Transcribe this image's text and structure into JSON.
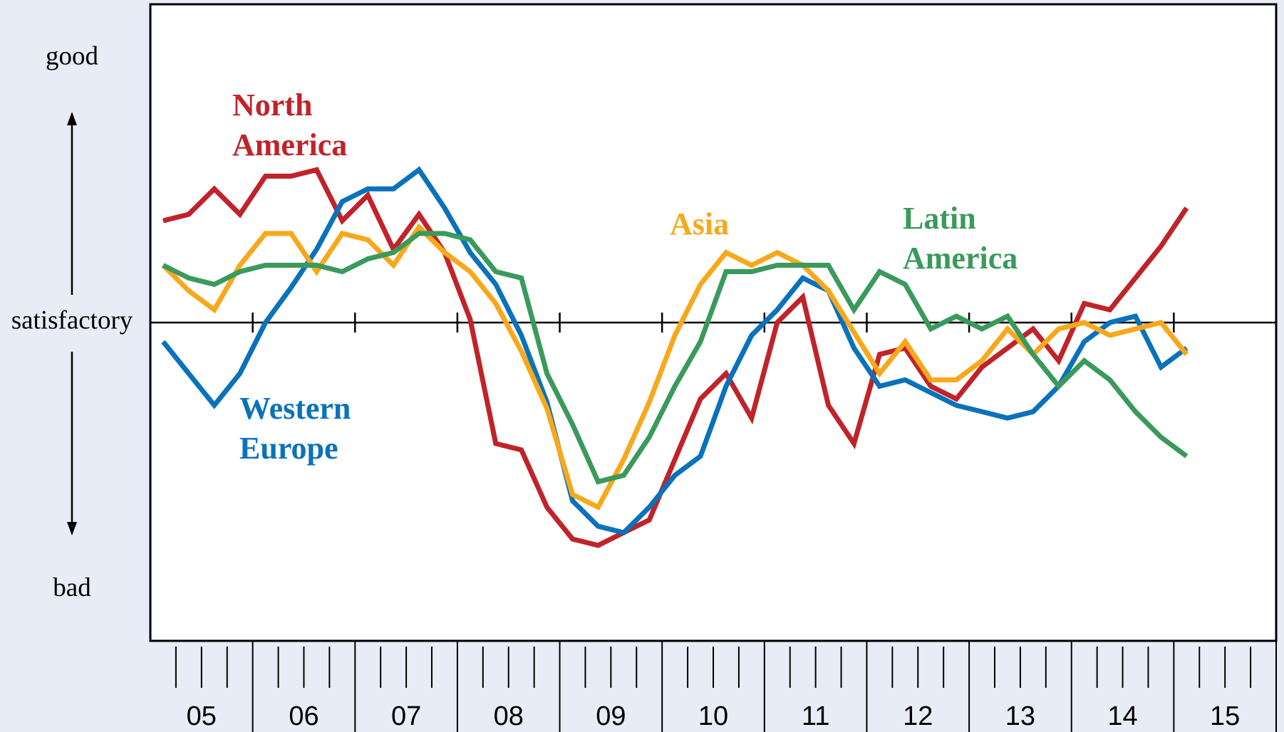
{
  "chart_data": {
    "type": "line",
    "x": [
      5.125,
      5.375,
      5.625,
      5.875,
      6.125,
      6.375,
      6.625,
      6.875,
      7.125,
      7.375,
      7.625,
      7.875,
      8.125,
      8.375,
      8.625,
      8.875,
      9.125,
      9.375,
      9.625,
      9.875,
      10.125,
      10.375,
      10.625,
      10.875,
      11.125,
      11.375,
      11.625,
      11.875,
      12.125,
      12.375,
      12.625,
      12.875,
      13.125,
      13.375,
      13.625,
      13.875,
      14.125,
      14.375,
      14.625,
      14.875,
      15.125
    ],
    "xlim": [
      5,
      16
    ],
    "xticks": [
      {
        "value": 5.5,
        "label": "05"
      },
      {
        "value": 6.5,
        "label": "06"
      },
      {
        "value": 7.5,
        "label": "07"
      },
      {
        "value": 8.5,
        "label": "08"
      },
      {
        "value": 9.5,
        "label": "09"
      },
      {
        "value": 10.5,
        "label": "10"
      },
      {
        "value": 11.5,
        "label": "11"
      },
      {
        "value": 12.5,
        "label": "12"
      },
      {
        "value": 13.5,
        "label": "13"
      },
      {
        "value": 14.5,
        "label": "14"
      },
      {
        "value": 15.5,
        "label": "15"
      }
    ],
    "ylim": [
      -100,
      100
    ],
    "yticks": [
      {
        "value": 83,
        "label": "good"
      },
      {
        "value": 0,
        "label": "satisfactory"
      },
      {
        "value": -84,
        "label": "bad"
      }
    ],
    "series": [
      {
        "name": "North America",
        "color": "#c0232a",
        "values": [
          32,
          34,
          42,
          34,
          46,
          46,
          48,
          32,
          40,
          23,
          34,
          22,
          1,
          -38,
          -40,
          -58,
          -68,
          -70,
          -66,
          -62,
          -43,
          -24,
          -16,
          -30,
          0,
          8,
          -26,
          -38,
          -10,
          -8,
          -20,
          -24,
          -14,
          -8,
          -2,
          -12,
          6,
          4,
          14,
          24,
          36
        ]
      },
      {
        "name": "Western Europe",
        "color": "#0a72ba",
        "values": [
          -6,
          -16,
          -26,
          -16,
          0,
          11,
          23,
          38,
          42,
          42,
          48,
          36,
          22,
          12,
          -4,
          -25,
          -56,
          -64,
          -66,
          -58,
          -48,
          -42,
          -20,
          -4,
          4,
          14,
          10,
          -8,
          -20,
          -18,
          -22,
          -26,
          -28,
          -30,
          -28,
          -20,
          -6,
          0,
          2,
          -14,
          -8
        ]
      },
      {
        "name": "Asia",
        "color": "#f7a81b",
        "values": [
          18,
          10,
          4,
          18,
          28,
          28,
          16,
          28,
          26,
          18,
          30,
          22,
          16,
          6,
          -9,
          -27,
          -54,
          -58,
          -43,
          -25,
          -4,
          12,
          22,
          18,
          22,
          18,
          10,
          -3,
          -16,
          -6,
          -18,
          -18,
          -12,
          -2,
          -10,
          -2,
          0,
          -4,
          -2,
          0,
          -10
        ]
      },
      {
        "name": "Latin America",
        "color": "#3a9a5c",
        "values": [
          18,
          14,
          12,
          16,
          18,
          18,
          18,
          16,
          20,
          22,
          28,
          28,
          26,
          16,
          14,
          -16,
          -32,
          -50,
          -48,
          -36,
          -20,
          -6,
          16,
          16,
          18,
          18,
          18,
          4,
          16,
          12,
          -2,
          2,
          -2,
          2,
          -10,
          -20,
          -12,
          -18,
          -28,
          -36,
          -42
        ]
      }
    ]
  }
}
